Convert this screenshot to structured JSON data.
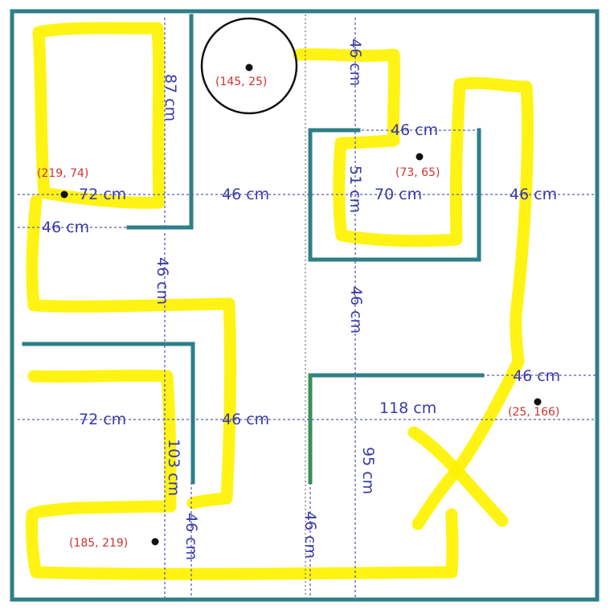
{
  "dimensions": {
    "left_top_wall_height": "87 cm",
    "top_center_gap": "46 cm",
    "room_box_top": "46 cm",
    "left_room_width": "72 cm",
    "left_corridor": "46 cm",
    "box_height": "51 cm",
    "box_width": "70 cm",
    "right_corridor": "46 cm",
    "left_wall_gap": "46 cm",
    "left_vertical_gap": "46 cm",
    "center_vertical_gap": "46 cm",
    "right_wall_gap": "46 cm",
    "bottom_left_width": "72 cm",
    "bottom_left_corridor": "46 cm",
    "bottom_right_width": "118 cm",
    "bottom_left_height": "103 cm",
    "bottom_right_height": "95 cm",
    "bottom_left_gap": "46 cm",
    "bottom_center_gap": "46 cm"
  },
  "points": [
    {
      "label": "(145, 25)"
    },
    {
      "label": "(219, 74)"
    },
    {
      "label": "(73, 65)"
    },
    {
      "label": "(25, 166)"
    },
    {
      "label": "(185, 219)"
    }
  ],
  "colors": {
    "wall": "#2e7f86",
    "highlight": "#fff200",
    "dimension_text": "#3a3aa8",
    "coordinate_text": "#cc3333"
  }
}
